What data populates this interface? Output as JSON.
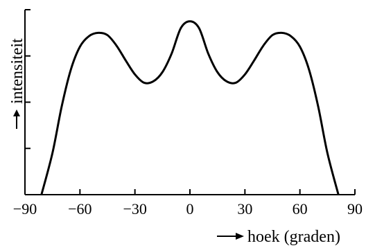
{
  "chart_data": {
    "type": "line",
    "title": "",
    "xlabel": "hoek (graden)",
    "ylabel": "intensiteit",
    "xlim": [
      -90,
      90
    ],
    "ylim": [
      0,
      4
    ],
    "xticks": [
      -90,
      -60,
      -30,
      0,
      30,
      60,
      90
    ],
    "xtick_labels": [
      "−90",
      "−60",
      "−30",
      "0",
      "30",
      "60",
      "90"
    ],
    "yticks": [
      0,
      1,
      2,
      3,
      4
    ],
    "grid": false,
    "series": [
      {
        "x": [
          -81,
          -75,
          -70,
          -65,
          -60,
          -55,
          -50,
          -45,
          -40,
          -35,
          -30,
          -25,
          -20,
          -15,
          -10,
          -5,
          0,
          5,
          10,
          15,
          20,
          25,
          30,
          35,
          40,
          45,
          50,
          55,
          60,
          65,
          70,
          75,
          81
        ],
        "y": [
          0,
          0.9,
          1.9,
          2.7,
          3.2,
          3.43,
          3.5,
          3.45,
          3.22,
          2.9,
          2.6,
          2.42,
          2.45,
          2.65,
          3.05,
          3.6,
          3.75,
          3.6,
          3.05,
          2.65,
          2.45,
          2.42,
          2.6,
          2.9,
          3.22,
          3.45,
          3.5,
          3.43,
          3.2,
          2.7,
          1.9,
          0.9,
          0
        ]
      }
    ]
  }
}
